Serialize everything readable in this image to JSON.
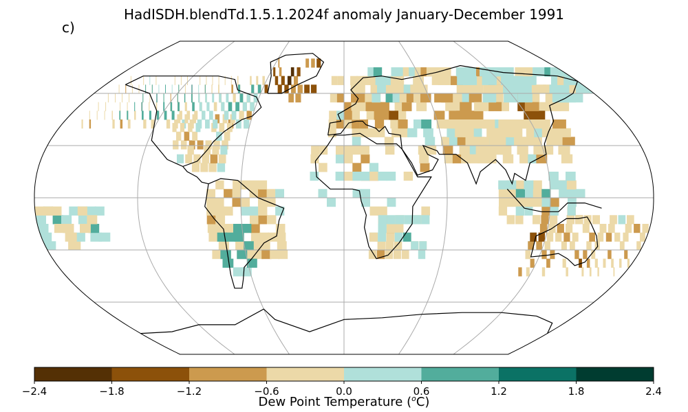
{
  "title": "HadISDH.blendTd.1.5.1.2024f anomaly January-December 1991",
  "panel_label": "c)",
  "colorbar": {
    "label": "Dew Point Temperature (°C)",
    "label_pre": "Dew Point Temperature (",
    "label_sup": "o",
    "label_post": "C)",
    "ticks": [
      "−2.4",
      "−1.8",
      "−1.2",
      "−0.6",
      "0.0",
      "0.6",
      "1.2",
      "1.8",
      "2.4"
    ],
    "bins": [
      {
        "range": [
          -2.4,
          -1.8
        ],
        "color": "#543005"
      },
      {
        "range": [
          -1.8,
          -1.2
        ],
        "color": "#8c510a"
      },
      {
        "range": [
          -1.2,
          -0.6
        ],
        "color": "#cc9a4e"
      },
      {
        "range": [
          -0.6,
          0.0
        ],
        "color": "#ecd9a8"
      },
      {
        "range": [
          0.0,
          0.6
        ],
        "color": "#b0e0da"
      },
      {
        "range": [
          0.6,
          1.2
        ],
        "color": "#52ad9c"
      },
      {
        "range": [
          1.2,
          1.8
        ],
        "color": "#0b7265"
      },
      {
        "range": [
          1.8,
          2.4
        ],
        "color": "#003c30"
      }
    ]
  },
  "map": {
    "projection": "Robinson",
    "gridlines": true,
    "coastlines": true,
    "missing_color": "#ffffff"
  }
}
